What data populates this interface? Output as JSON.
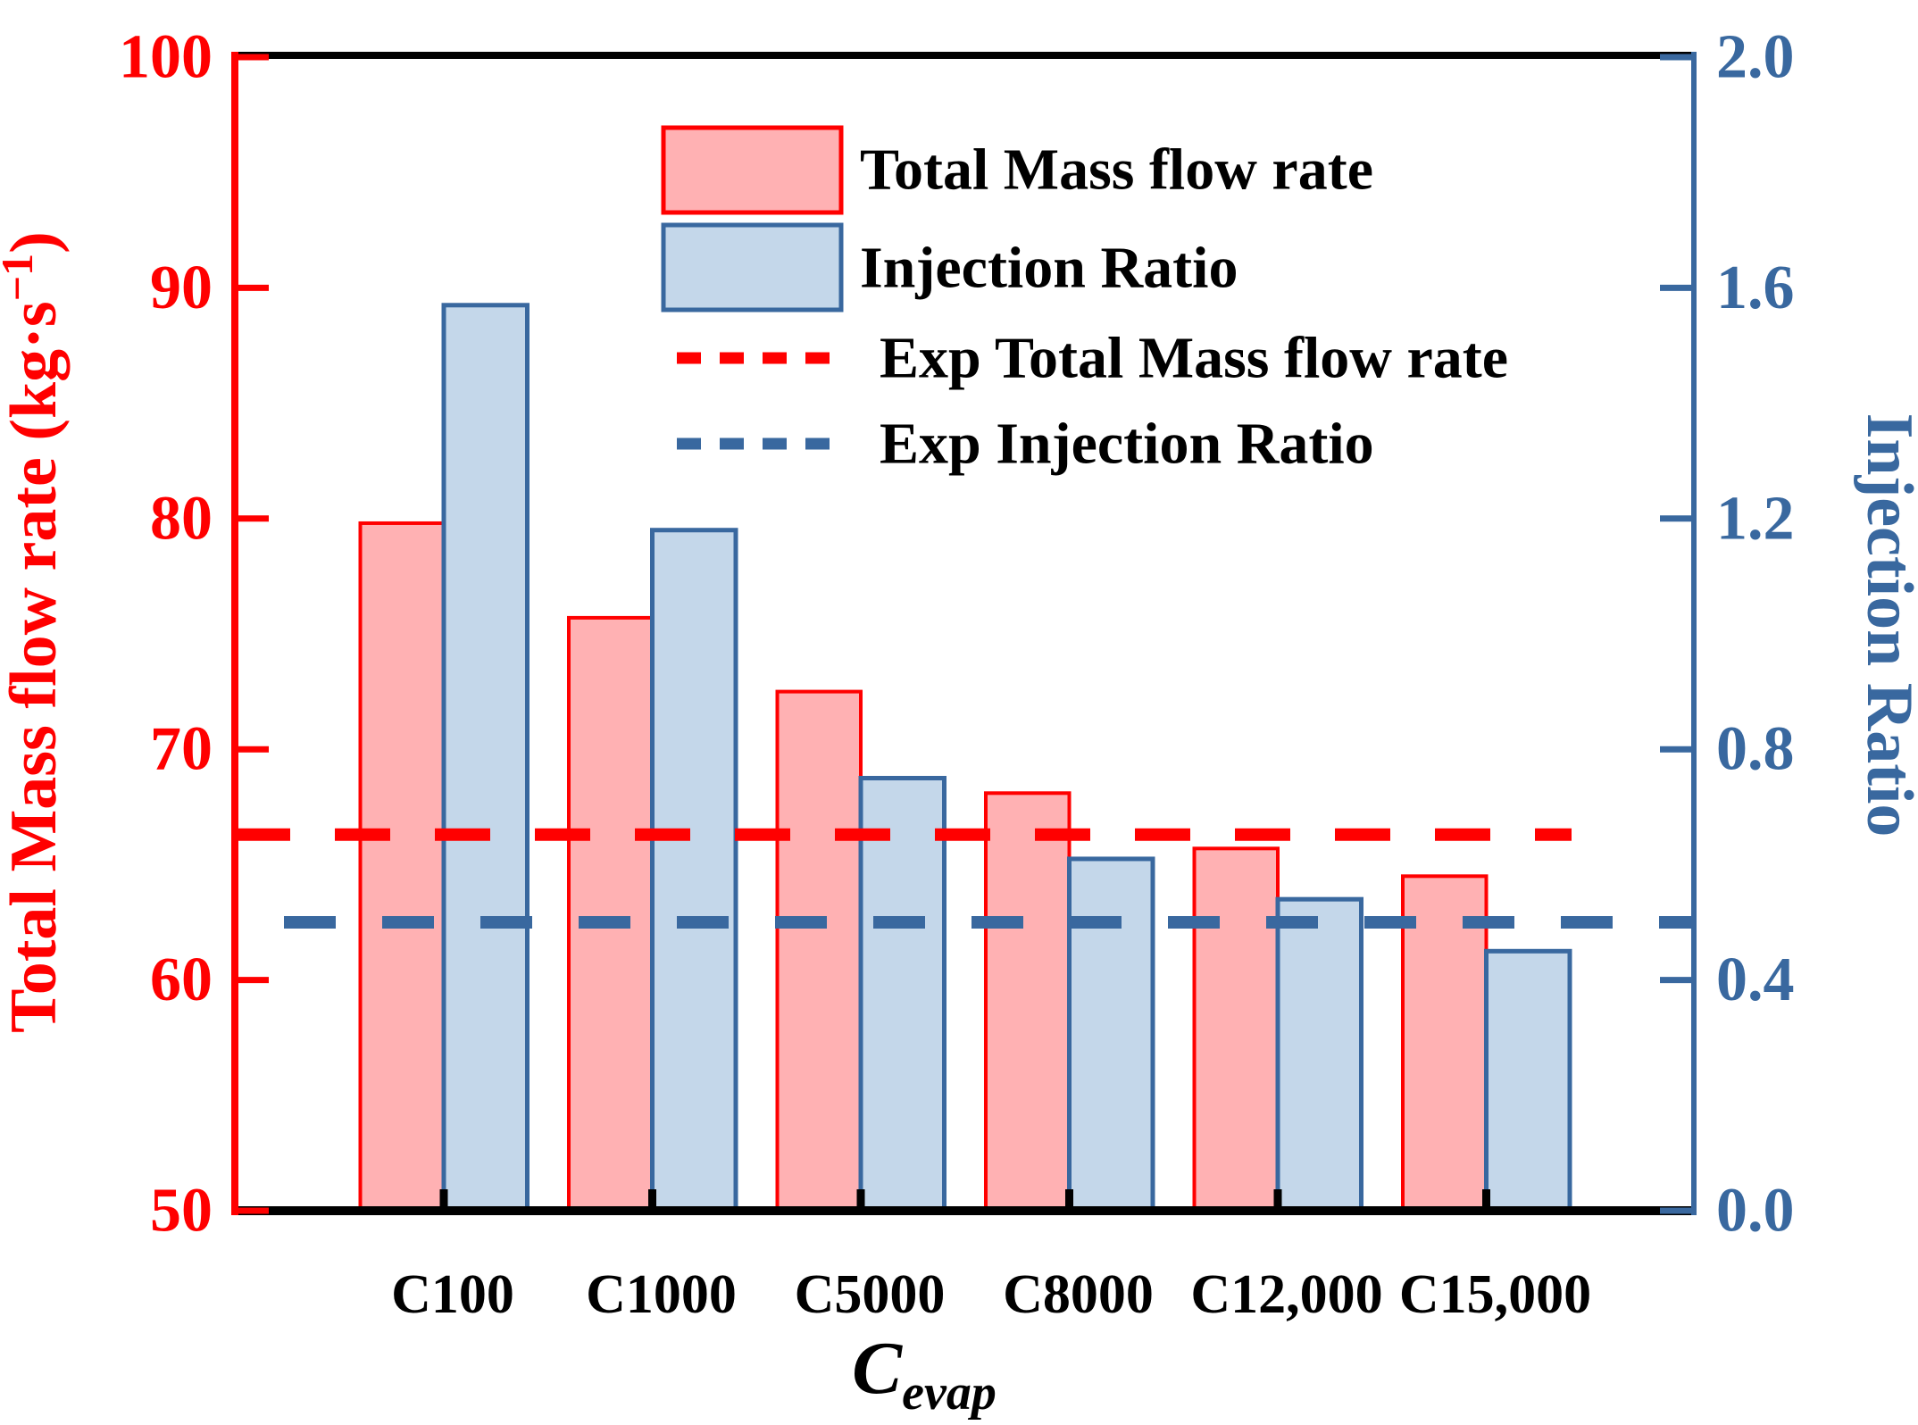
{
  "chart_data": {
    "type": "bar",
    "categories": [
      "C100",
      "C1000",
      "C5000",
      "C8000",
      "C12,000",
      "C15,000"
    ],
    "series": [
      {
        "name": "Total Mass flow rate",
        "axis": "left",
        "values": [
          79.8,
          75.7,
          72.5,
          68.1,
          65.7,
          64.5
        ],
        "fill": "#FFB1B3",
        "stroke": "#FF0000"
      },
      {
        "name": "Injection Ratio",
        "axis": "right",
        "values": [
          1.57,
          1.18,
          0.75,
          0.61,
          0.54,
          0.45
        ],
        "fill": "#C4D7EA",
        "stroke": "#39689F"
      }
    ],
    "ref_lines": [
      {
        "name": "Exp Total Mass flow rate",
        "axis": "left",
        "value": 66.3,
        "color": "#FF0000"
      },
      {
        "name": "Exp Injection Ratio",
        "axis": "right",
        "value": 0.5,
        "color": "#39689F"
      }
    ],
    "legend": {
      "items": [
        {
          "label": "Total Mass flow rate",
          "type": "box",
          "fill": "#FFB1B3",
          "stroke": "#FF0000"
        },
        {
          "label": "Injection Ratio",
          "type": "box",
          "fill": "#C4D7EA",
          "stroke": "#39689F"
        },
        {
          "label": "Exp Total Mass flow rate",
          "type": "dash",
          "stroke": "#FF0000"
        },
        {
          "label": "Exp Injection Ratio",
          "type": "dash",
          "stroke": "#39689F"
        }
      ],
      "position": "upper-center"
    },
    "left_axis": {
      "label_base": "Total Mass flow rate (kg·s",
      "label_sup": "−1",
      "label_close": ")",
      "label_full": "Total Mass flow rate (kg·s−1)",
      "min": 50,
      "max": 100,
      "tick_labels": [
        "50",
        "60",
        "70",
        "80",
        "90",
        "100"
      ],
      "tick_values": [
        50,
        60,
        70,
        80,
        90,
        100
      ],
      "color": "#FF0000"
    },
    "right_axis": {
      "label": "Injection Ratio",
      "min": 0.0,
      "max": 2.0,
      "tick_labels": [
        "0.0",
        "0.4",
        "0.8",
        "1.2",
        "1.6",
        "2.0"
      ],
      "tick_values": [
        0.0,
        0.4,
        0.8,
        1.2,
        1.6,
        2.0
      ],
      "color": "#39689F"
    },
    "x_axis": {
      "title_main": "C",
      "title_sub": "evap",
      "tick_labels": [
        "C100",
        "C1000",
        "C5000",
        "C8000",
        "C12,000",
        "C15,000"
      ],
      "color": "#000000"
    },
    "grid": false
  }
}
